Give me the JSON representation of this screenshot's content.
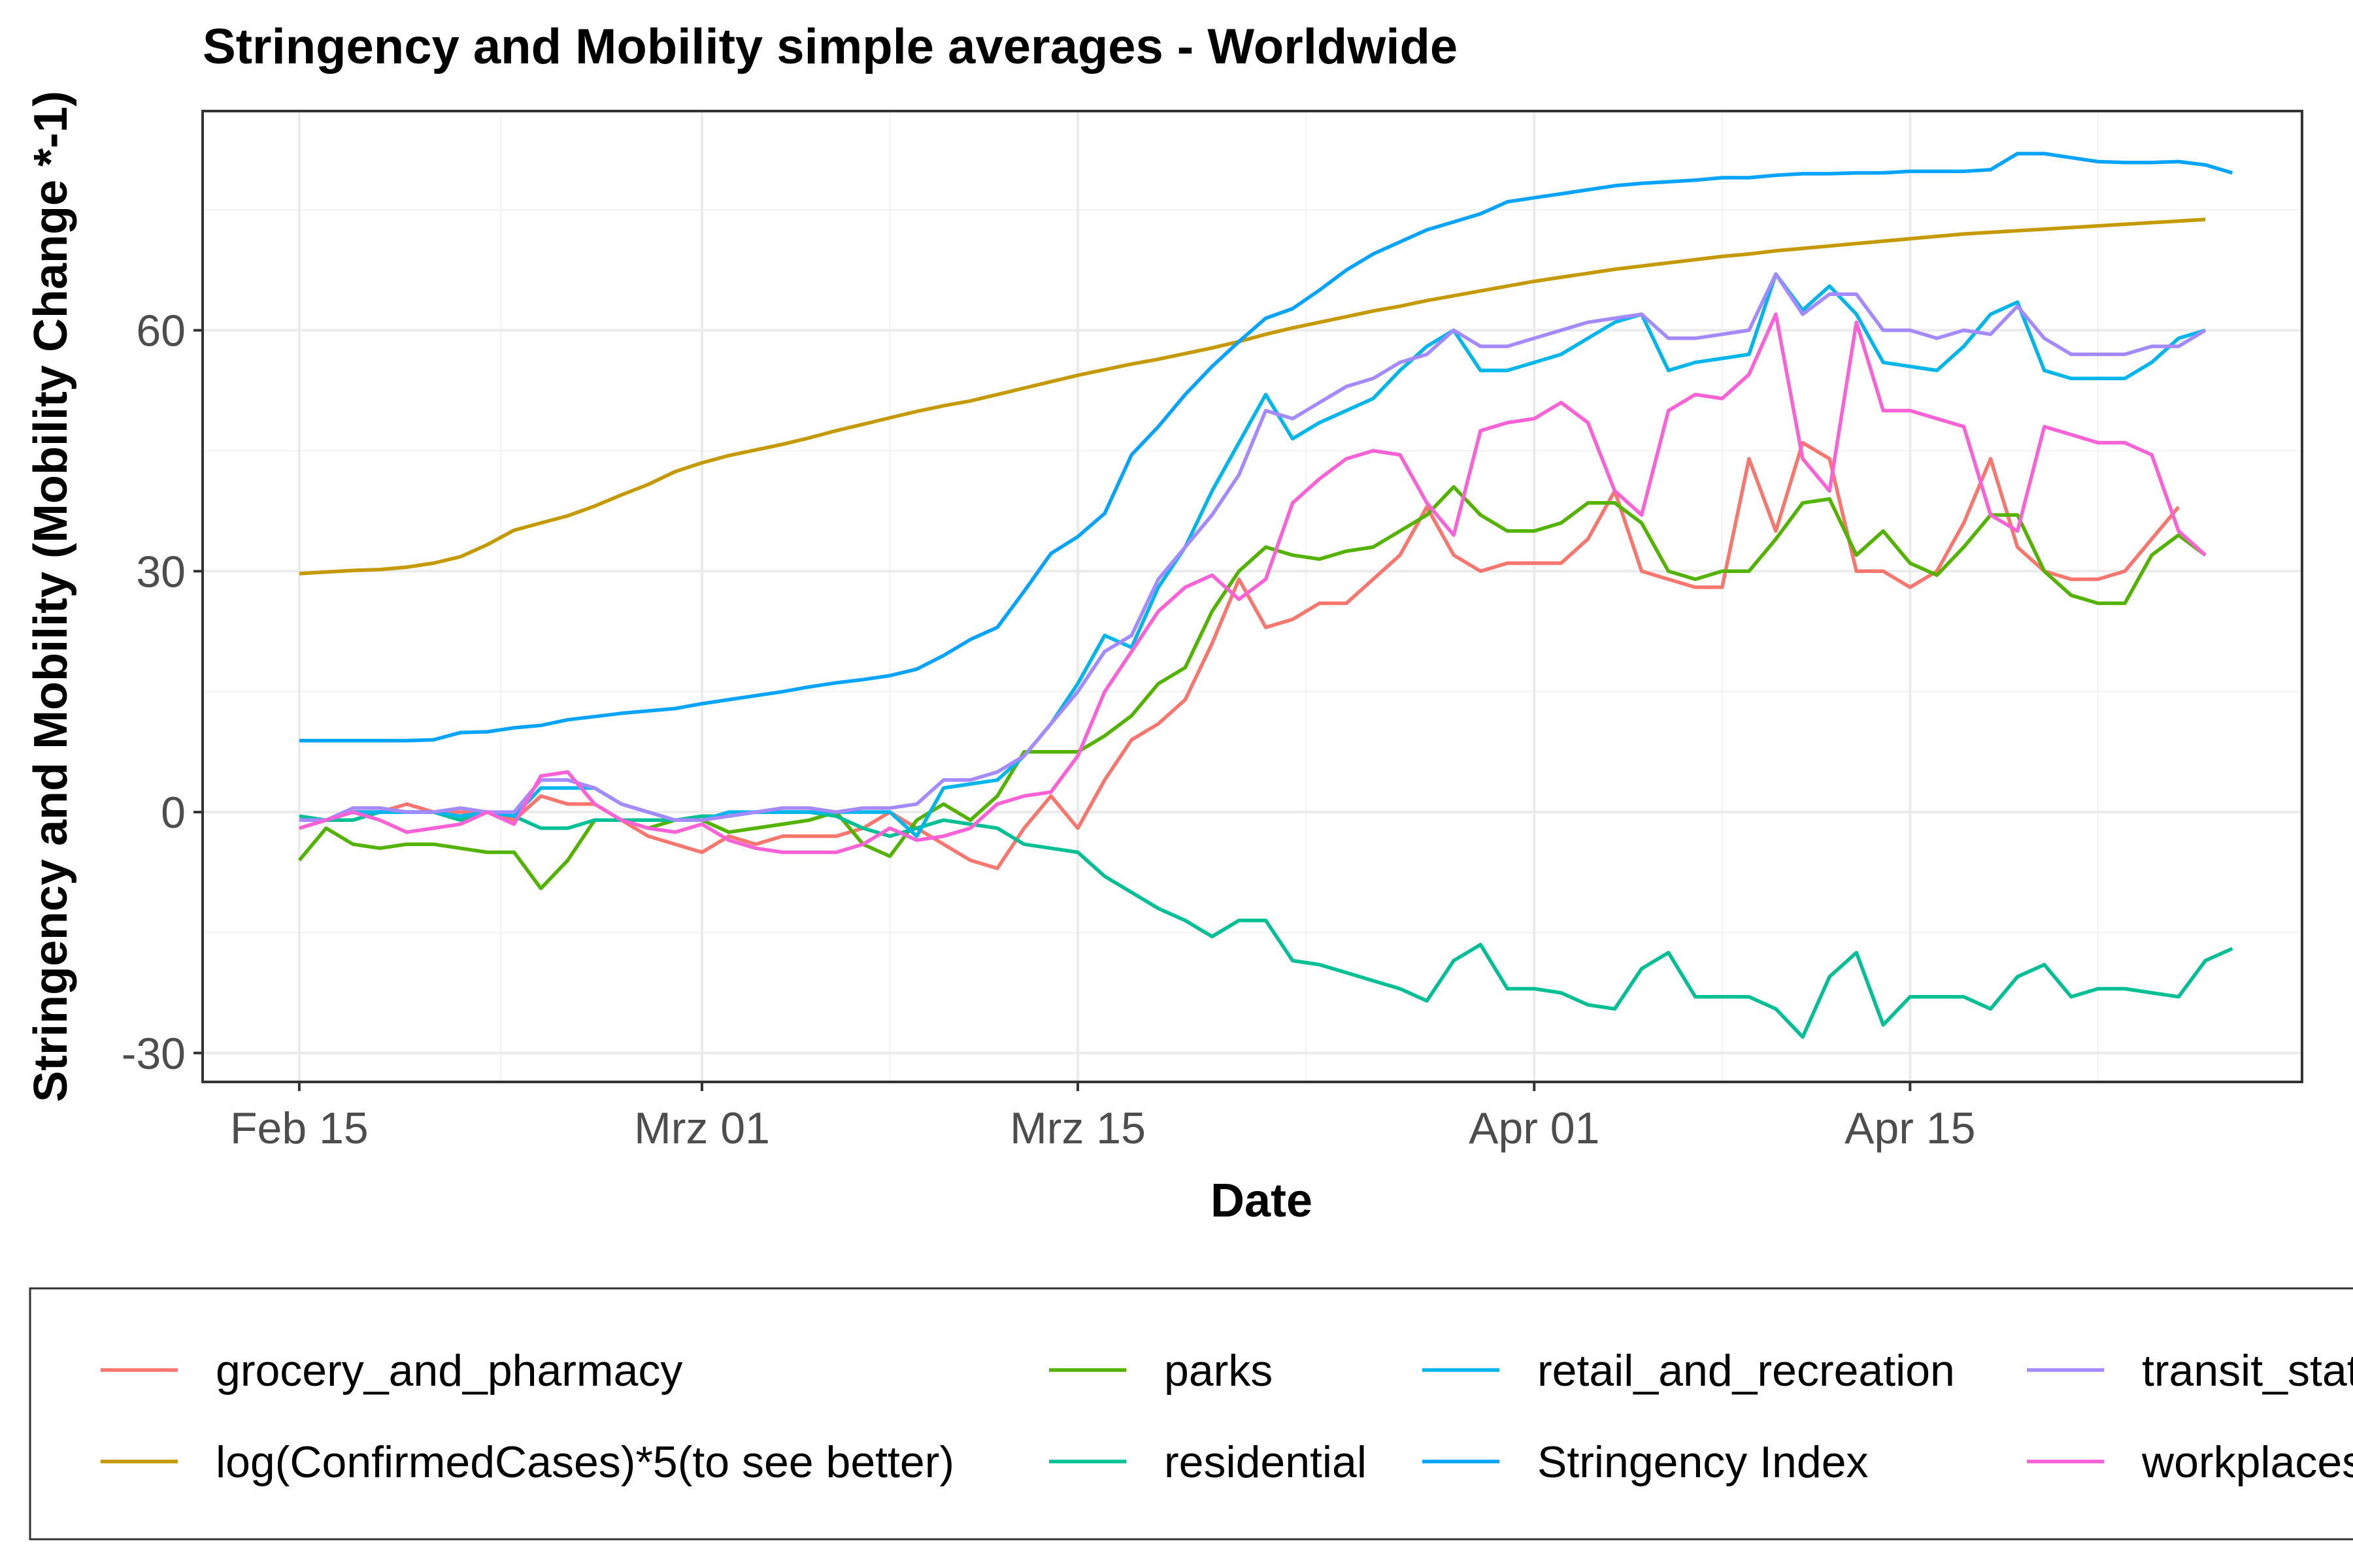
{
  "chart_data": {
    "type": "line",
    "title": "Stringency and Mobility simple averages - Worldwide",
    "xlabel": "Date",
    "ylabel": "Stringency and Mobility (Mobility Change *-1)",
    "x_start": "2020-02-15",
    "xlim_days": [
      -3.6,
      74.6
    ],
    "ylim": [
      -33.6,
      87.3
    ],
    "x_ticks": [
      {
        "day": 0,
        "label": "Feb 15"
      },
      {
        "day": 15,
        "label": "Mrz 01"
      },
      {
        "day": 29,
        "label": "Mrz 15"
      },
      {
        "day": 46,
        "label": "Apr 01"
      },
      {
        "day": 60,
        "label": "Apr 15"
      }
    ],
    "y_ticks": [
      -30,
      0,
      30,
      60
    ],
    "grid": true,
    "legend_position": "bottom",
    "series": [
      {
        "name": "grocery_and_pharmacy",
        "color": "#F8766D",
        "values": [
          -2,
          -1,
          0,
          0,
          1,
          0,
          0,
          0,
          -1,
          2,
          1,
          1,
          -1,
          -3,
          -4,
          -5,
          -3,
          -4,
          -3,
          -3,
          -3,
          -2,
          0,
          -2,
          -4,
          -6,
          -7,
          -2,
          2,
          -2,
          4,
          9,
          11,
          14,
          21,
          29,
          23,
          24,
          26,
          26,
          29,
          32,
          38,
          32,
          30,
          31,
          31,
          31,
          34,
          40,
          30,
          29,
          28,
          28,
          44,
          35,
          46,
          44,
          30,
          30,
          28,
          30,
          36,
          44,
          33,
          30,
          29,
          29,
          30,
          34,
          38
        ]
      },
      {
        "name": "log(ConfirmedCases)*5(to see better)",
        "color": "#C49A00",
        "values": [
          29.7,
          29.9,
          30.1,
          30.2,
          30.5,
          31.0,
          31.8,
          33.3,
          35.1,
          36.0,
          36.9,
          38.1,
          39.5,
          40.8,
          42.4,
          43.5,
          44.4,
          45.1,
          45.8,
          46.6,
          47.5,
          48.3,
          49.1,
          49.9,
          50.6,
          51.2,
          52.0,
          52.8,
          53.6,
          54.4,
          55.1,
          55.8,
          56.4,
          57.1,
          57.8,
          58.6,
          59.5,
          60.3,
          61.0,
          61.7,
          62.4,
          63.0,
          63.7,
          64.3,
          64.9,
          65.5,
          66.1,
          66.6,
          67.1,
          67.6,
          68.0,
          68.4,
          68.8,
          69.2,
          69.5,
          69.9,
          70.2,
          70.5,
          70.8,
          71.1,
          71.4,
          71.7,
          72.0,
          72.2,
          72.4,
          72.6,
          72.8,
          73.0,
          73.2,
          73.4,
          73.6,
          73.8
        ]
      },
      {
        "name": "parks",
        "color": "#53B400",
        "values": [
          -6,
          -2,
          -4,
          -4.5,
          -4,
          -4,
          -4.5,
          -5,
          -5,
          -9.5,
          -6,
          -1,
          -1,
          -2,
          -1,
          -1,
          -2.5,
          -2,
          -1.5,
          -1,
          0,
          -4,
          -5.5,
          -1,
          1,
          -1,
          2,
          7.5,
          7.5,
          7.5,
          9.5,
          12,
          16,
          18,
          25,
          30,
          33,
          32,
          31.5,
          32.5,
          33,
          35,
          37,
          40.5,
          37,
          35,
          35,
          36,
          38.5,
          38.5,
          36,
          30,
          29,
          30,
          30,
          34,
          38.5,
          39,
          32,
          35,
          31,
          29.5,
          33,
          37,
          37,
          30,
          27,
          26,
          26,
          32,
          34.5,
          32
        ]
      },
      {
        "name": "residential",
        "color": "#00C094",
        "values": [
          -0.5,
          -1,
          -1,
          0,
          0,
          0,
          -1,
          0,
          -0.5,
          -2,
          -2,
          -1,
          -1,
          -1,
          -1,
          -0.5,
          -0.5,
          0,
          0,
          0,
          -0.5,
          -2,
          -3,
          -2,
          -1,
          -1.5,
          -2,
          -4,
          -4.5,
          -5,
          -8,
          -10,
          -12,
          -13.5,
          -15.5,
          -13.5,
          -13.5,
          -18.5,
          -19,
          -20,
          -21,
          -22,
          -23.5,
          -18.5,
          -16.5,
          -22,
          -22,
          -22.5,
          -24,
          -24.5,
          -19.5,
          -17.5,
          -23,
          -23,
          -23,
          -24.5,
          -28,
          -20.5,
          -17.5,
          -26.5,
          -23,
          -23,
          -23,
          -24.5,
          -20.5,
          -19,
          -23,
          -22,
          -22,
          -22.5,
          -23,
          -18.5,
          -17
        ]
      },
      {
        "name": "retail_and_recreation",
        "color": "#00B6EB",
        "values": [
          -1,
          -1,
          0,
          0,
          0,
          0,
          -0.5,
          0,
          -0.5,
          3,
          3,
          3,
          1,
          0,
          -1,
          -1,
          0,
          0,
          0,
          0,
          0,
          0,
          0,
          -3,
          3,
          3.5,
          4,
          7,
          11,
          16,
          22,
          20.5,
          28,
          33,
          40,
          46,
          52,
          46.5,
          48.5,
          50,
          51.5,
          55,
          58,
          60,
          55,
          55,
          56,
          57,
          59,
          61,
          62,
          55,
          56,
          56.5,
          57,
          67,
          62.5,
          65.5,
          62,
          56,
          55.5,
          55,
          58,
          62,
          63.5,
          55,
          54,
          54,
          54,
          56,
          59,
          60
        ]
      },
      {
        "name": "Stringency Index",
        "color": "#06A4FF",
        "values": [
          8.9,
          8.9,
          8.9,
          8.9,
          8.9,
          9.0,
          9.9,
          10.0,
          10.5,
          10.8,
          11.5,
          11.9,
          12.3,
          12.6,
          12.9,
          13.5,
          14.0,
          14.5,
          15.0,
          15.6,
          16.1,
          16.5,
          17.0,
          17.8,
          19.5,
          21.5,
          23.0,
          27.5,
          32.2,
          34.3,
          37.2,
          44.5,
          48.0,
          52.0,
          55.5,
          58.6,
          61.5,
          62.7,
          65.0,
          67.5,
          69.5,
          71.0,
          72.5,
          73.5,
          74.5,
          76.0,
          76.5,
          77.0,
          77.5,
          78.0,
          78.3,
          78.5,
          78.7,
          79.0,
          79.0,
          79.3,
          79.5,
          79.5,
          79.6,
          79.6,
          79.8,
          79.8,
          79.8,
          80.0,
          82.0,
          82.0,
          81.5,
          81.0,
          80.9,
          80.9,
          81.0,
          80.6,
          79.6
        ]
      },
      {
        "name": "transit_stations",
        "color": "#A58AFF",
        "values": [
          -1,
          -1,
          0.5,
          0.5,
          0,
          0,
          0.5,
          0,
          0,
          4,
          4,
          3,
          1,
          0,
          -1,
          -1,
          -0.5,
          0,
          0.5,
          0.5,
          0,
          0.5,
          0.5,
          1,
          4,
          4,
          5,
          7,
          11,
          15,
          20,
          22,
          29,
          33,
          37,
          42,
          50,
          49,
          51,
          53,
          54,
          56,
          57,
          60,
          58,
          58,
          59,
          60,
          61,
          61.5,
          62,
          59,
          59,
          59.5,
          60,
          67,
          62,
          64.5,
          64.5,
          60,
          60,
          59,
          60,
          59.5,
          63,
          59,
          57,
          57,
          57,
          58,
          58,
          60
        ]
      },
      {
        "name": "workplaces",
        "color": "#FB61D7",
        "values": [
          -2,
          -1,
          0,
          -1,
          -2.5,
          -2,
          -1.5,
          0,
          -1.5,
          4.5,
          5,
          1,
          -1,
          -2,
          -2.5,
          -1.5,
          -3.5,
          -4.5,
          -5,
          -5,
          -5,
          -4,
          -2,
          -3.5,
          -3,
          -2,
          1,
          2,
          2.5,
          7,
          15,
          20,
          25,
          28,
          29.5,
          26.5,
          29,
          38.5,
          41.5,
          44,
          45,
          44.5,
          38.5,
          34.5,
          47.5,
          48.5,
          49,
          51,
          48.5,
          40,
          37,
          50,
          52,
          51.5,
          54.5,
          62,
          44,
          40,
          61,
          50,
          50,
          49,
          48,
          37,
          35,
          48,
          47,
          46,
          46,
          44.5,
          35,
          32
        ]
      }
    ]
  }
}
